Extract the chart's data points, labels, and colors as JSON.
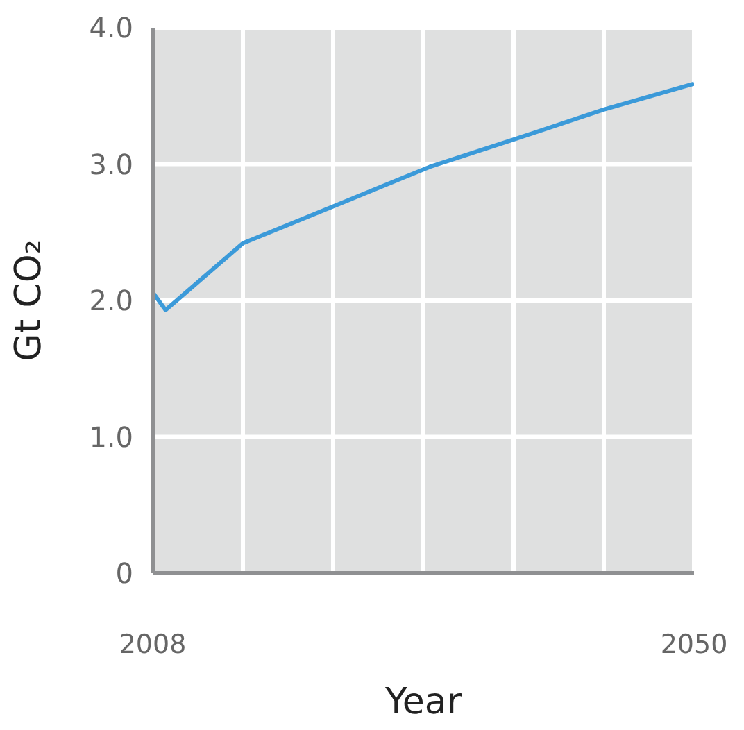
{
  "chart_data": {
    "type": "line",
    "xlabel": "Year",
    "ylabel": "Gt CO₂",
    "x": [
      2008,
      2009,
      2015,
      2022,
      2029.5,
      2036,
      2043,
      2050
    ],
    "series": [
      {
        "color": "#3b9ad9",
        "values": [
          2.06,
          1.93,
          2.42,
          2.69,
          2.98,
          3.18,
          3.4,
          3.59
        ]
      }
    ],
    "xlim": [
      2008,
      2050
    ],
    "xticks": [
      2008,
      {
        "value": 2015,
        "label": null
      },
      {
        "value": 2022,
        "label": null
      },
      {
        "value": 2029,
        "label": null
      },
      {
        "value": 2036,
        "label": null
      },
      {
        "value": 2043,
        "label": null
      },
      2050
    ],
    "ylim": [
      0,
      4
    ],
    "yticks": [
      0,
      {
        "value": 1,
        "label": "1.0"
      },
      {
        "value": 2,
        "label": "2.0"
      },
      {
        "value": 3,
        "label": "3.0"
      },
      {
        "value": 4,
        "label": "4.0"
      }
    ],
    "grid": true,
    "marker": "none",
    "line_style": "solid"
  }
}
